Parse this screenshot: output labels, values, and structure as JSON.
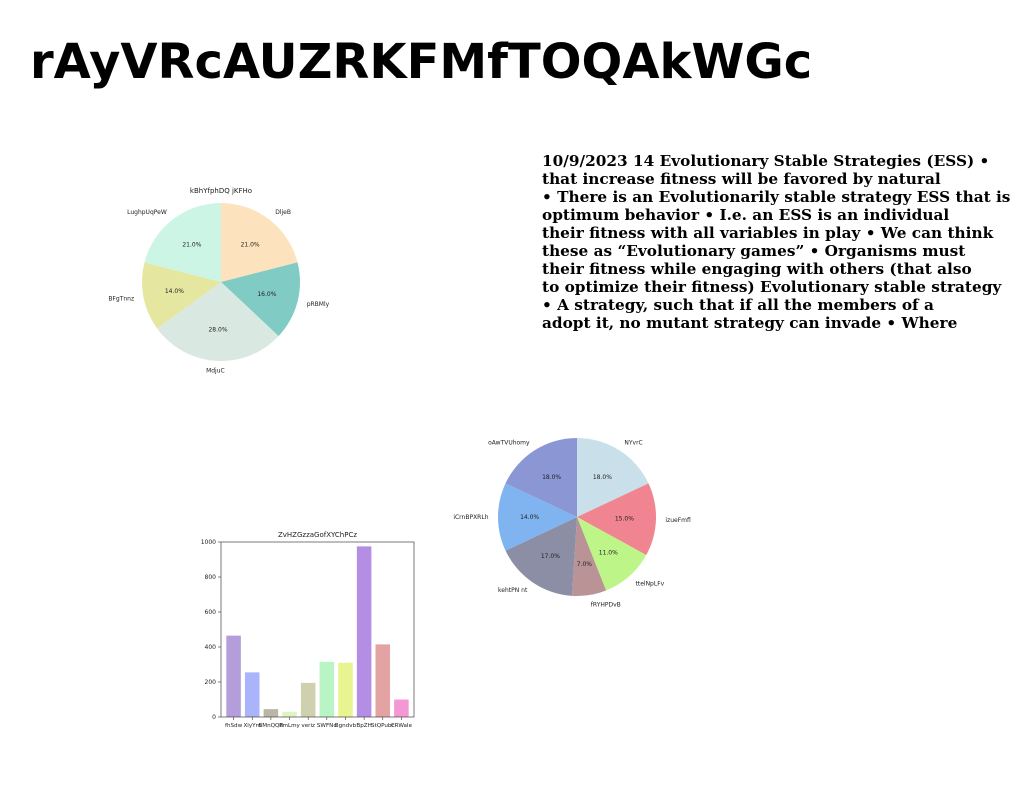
{
  "page": {
    "title": "rAyVRcAUZRKFMfTOQAkWGc",
    "body_lines": [
      "10/9/2023 14 Evolutionary Stable Strategies (ESS) •",
      "that increase fitness will be favored by natural",
      "• There is an Evolutionarily stable strategy ESS that is",
      "optimum behavior • I.e. an ESS is an individual",
      "their fitness with all variables in play • We can think",
      "these as “Evolutionary games” • Organisms must",
      "their fitness while engaging with others (that also",
      "to optimize their fitness) Evolutionary stable strategy",
      "• A strategy, such that if all the members of a",
      "adopt it, no mutant strategy can invade • Where"
    ]
  },
  "chart_data": [
    {
      "type": "pie",
      "title": "kBhYfphDQ jKFHo",
      "start_angle": "top, clockwise",
      "slices": [
        {
          "label": "DljeB",
          "value": 21.0,
          "pct_label": "21.0%",
          "color": "#fde3bd"
        },
        {
          "label": "pRBMly",
          "value": 16.0,
          "pct_label": "16.0%",
          "color": "#80cbc4"
        },
        {
          "label": "MdjuC",
          "value": 28.0,
          "pct_label": "28.0%",
          "color": "#d9e9e1"
        },
        {
          "label": "BFgTnnz",
          "value": 14.0,
          "pct_label": "14.0%",
          "color": "#e5e7a0"
        },
        {
          "label": "LughpUqPeW",
          "value": 21.0,
          "pct_label": "21.0%",
          "color": "#cdf5e6"
        }
      ]
    },
    {
      "type": "pie",
      "title": "",
      "start_angle": "top, clockwise",
      "slices": [
        {
          "label": "NYvrC",
          "value": 18.0,
          "pct_label": "18.0%",
          "color": "#c9e0ea"
        },
        {
          "label": "izueFmfl",
          "value": 15.0,
          "pct_label": "15.0%",
          "color": "#f08491"
        },
        {
          "label": "ttelNpLFv",
          "value": 11.0,
          "pct_label": "11.0%",
          "color": "#bdf588"
        },
        {
          "label": "fRYHPDvB",
          "value": 7.0,
          "pct_label": "7.0%",
          "color": "#b99396"
        },
        {
          "label": "kehtPN nt",
          "value": 17.0,
          "pct_label": "17.0%",
          "color": "#8c8ea6"
        },
        {
          "label": "iCrnBPXRLh",
          "value": 14.0,
          "pct_label": "14.0%",
          "color": "#80b4f0"
        },
        {
          "label": "oAwTVUhomy",
          "value": 18.0,
          "pct_label": "18.0%",
          "color": "#8a97d4"
        }
      ]
    },
    {
      "type": "bar",
      "title": "ZvHZGzzaGofXYChPCz",
      "categories": [
        "fhSdw",
        "XlyYm",
        "BMnQQB",
        "PmLmy",
        "veriz",
        "SWFNo",
        "Bgndvb",
        "BpZH",
        "StQPubc",
        "CRWaIe"
      ],
      "values": [
        465,
        255,
        45,
        30,
        195,
        315,
        310,
        975,
        415,
        100
      ],
      "colors": [
        "#b39ddb",
        "#aab4fb",
        "#bab6a4",
        "#dff5c1",
        "#cfd1ae",
        "#b9f5c4",
        "#e7f48f",
        "#b48ee4",
        "#e3a3a3",
        "#f398d3"
      ],
      "ylim": [
        0,
        1000
      ],
      "yticks": [
        0,
        200,
        400,
        600,
        800,
        1000
      ]
    }
  ]
}
